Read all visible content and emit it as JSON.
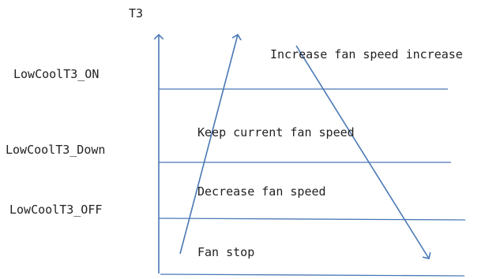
{
  "axis_label": "T3",
  "thresholds": {
    "on": "LowCoolT3_ON",
    "down": "LowCoolT3_Down",
    "off": "LowCoolT3_OFF"
  },
  "zones": {
    "increase": "Increase fan speed increase",
    "keep": "Keep current fan speed",
    "decrease": "Decrease fan speed",
    "stop": "Fan stop"
  },
  "colors": {
    "line": "#4a78b5",
    "text": "#222222"
  }
}
